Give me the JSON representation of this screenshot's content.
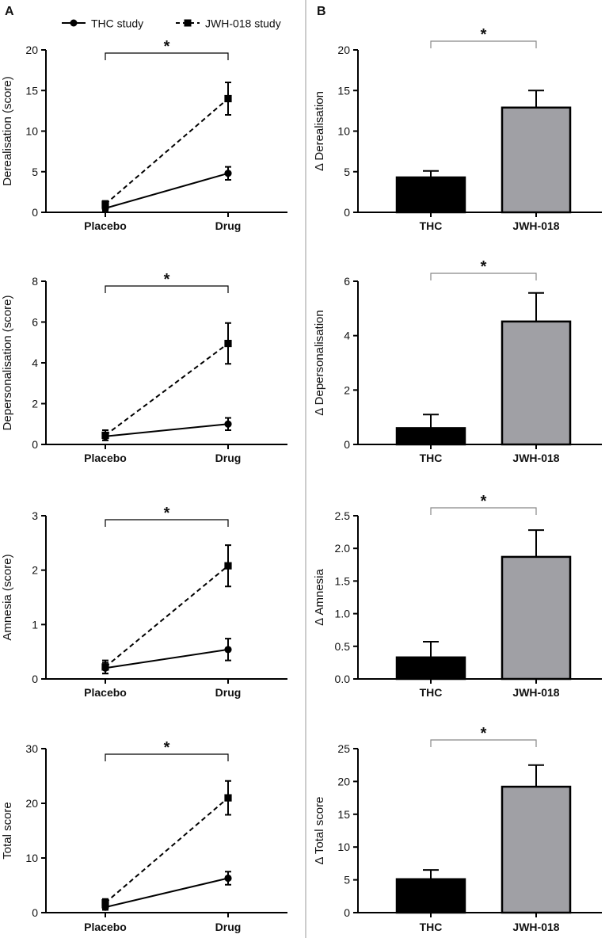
{
  "panel_labels": {
    "a": "A",
    "b": "B"
  },
  "legend": {
    "items": [
      {
        "label": "THC study",
        "marker": "circle",
        "line": "solid"
      },
      {
        "label": "JWH-018 study",
        "marker": "square",
        "line": "dashed"
      }
    ]
  },
  "colors": {
    "thc_bar": "#000000",
    "jwh_bar": "#a0a0a5",
    "axis": "#000000",
    "divider": "#9a9a9a",
    "bracket": "#888888"
  },
  "chart_data": [
    {
      "panel": "A",
      "type": "line",
      "title": "",
      "xlabel": "",
      "ylabel": "Derealisation (score)",
      "categories": [
        "Placebo",
        "Drug"
      ],
      "ylim": [
        0,
        20
      ],
      "yticks": [
        0,
        5,
        10,
        15,
        20
      ],
      "significance": "*",
      "series": [
        {
          "name": "THC study",
          "marker": "circle",
          "line": "solid",
          "values": [
            0.5,
            4.8
          ],
          "errors": [
            0.3,
            0.8
          ]
        },
        {
          "name": "JWH-018 study",
          "marker": "square",
          "line": "dashed",
          "values": [
            1.0,
            14.0
          ],
          "errors": [
            0.4,
            2.0
          ]
        }
      ]
    },
    {
      "panel": "B",
      "type": "bar",
      "title": "",
      "xlabel": "",
      "ylabel": "Δ Derealisation",
      "categories": [
        "THC",
        "JWH-018"
      ],
      "ylim": [
        0,
        20
      ],
      "yticks": [
        0,
        5,
        10,
        15,
        20
      ],
      "significance": "*",
      "values": [
        4.3,
        12.9
      ],
      "errors": [
        0.8,
        2.1
      ]
    },
    {
      "panel": "A",
      "type": "line",
      "title": "",
      "xlabel": "",
      "ylabel": "Depersonalisation (score)",
      "categories": [
        "Placebo",
        "Drug"
      ],
      "ylim": [
        0,
        8
      ],
      "yticks": [
        0,
        2,
        4,
        6,
        8
      ],
      "significance": "*",
      "series": [
        {
          "name": "THC study",
          "marker": "circle",
          "line": "solid",
          "values": [
            0.4,
            1.0
          ],
          "errors": [
            0.1,
            0.3
          ]
        },
        {
          "name": "JWH-018 study",
          "marker": "square",
          "line": "dashed",
          "values": [
            0.45,
            4.95
          ],
          "errors": [
            0.25,
            1.0
          ]
        }
      ]
    },
    {
      "panel": "B",
      "type": "bar",
      "title": "",
      "xlabel": "",
      "ylabel": "Δ Depersonalisation",
      "categories": [
        "THC",
        "JWH-018"
      ],
      "ylim": [
        0,
        6
      ],
      "yticks": [
        0,
        2,
        4,
        6
      ],
      "significance": "*",
      "values": [
        0.6,
        4.52
      ],
      "errors": [
        0.5,
        1.05
      ]
    },
    {
      "panel": "A",
      "type": "line",
      "title": "",
      "xlabel": "",
      "ylabel": "Amnesia (score)",
      "categories": [
        "Placebo",
        "Drug"
      ],
      "ylim": [
        0,
        3
      ],
      "yticks": [
        0,
        1,
        2,
        3
      ],
      "significance": "*",
      "series": [
        {
          "name": "THC study",
          "marker": "circle",
          "line": "solid",
          "values": [
            0.2,
            0.54
          ],
          "errors": [
            0.1,
            0.2
          ]
        },
        {
          "name": "JWH-018 study",
          "marker": "square",
          "line": "dashed",
          "values": [
            0.22,
            2.08
          ],
          "errors": [
            0.12,
            0.38
          ]
        }
      ]
    },
    {
      "panel": "B",
      "type": "bar",
      "title": "",
      "xlabel": "",
      "ylabel": "Δ Amnesia",
      "categories": [
        "THC",
        "JWH-018"
      ],
      "ylim": [
        0,
        2.5
      ],
      "yticks": [
        0,
        0.5,
        1.0,
        1.5,
        2.0,
        2.5
      ],
      "significance": "*",
      "values": [
        0.33,
        1.87
      ],
      "errors": [
        0.24,
        0.41
      ]
    },
    {
      "panel": "A",
      "type": "line",
      "title": "",
      "xlabel": "",
      "ylabel": "Total score",
      "categories": [
        "Placebo",
        "Drug"
      ],
      "ylim": [
        0,
        30
      ],
      "yticks": [
        0,
        10,
        20,
        30
      ],
      "significance": "*",
      "series": [
        {
          "name": "THC study",
          "marker": "circle",
          "line": "solid",
          "values": [
            1.0,
            6.3
          ],
          "errors": [
            0.5,
            1.2
          ]
        },
        {
          "name": "JWH-018 study",
          "marker": "square",
          "line": "dashed",
          "values": [
            1.8,
            21.0
          ],
          "errors": [
            0.7,
            3.1
          ]
        }
      ]
    },
    {
      "panel": "B",
      "type": "bar",
      "title": "",
      "xlabel": "",
      "ylabel": "Δ Total score",
      "categories": [
        "THC",
        "JWH-018"
      ],
      "ylim": [
        0,
        25
      ],
      "yticks": [
        0,
        5,
        10,
        15,
        20,
        25
      ],
      "significance": "*",
      "values": [
        5.1,
        19.2
      ],
      "errors": [
        1.4,
        3.3
      ]
    }
  ]
}
